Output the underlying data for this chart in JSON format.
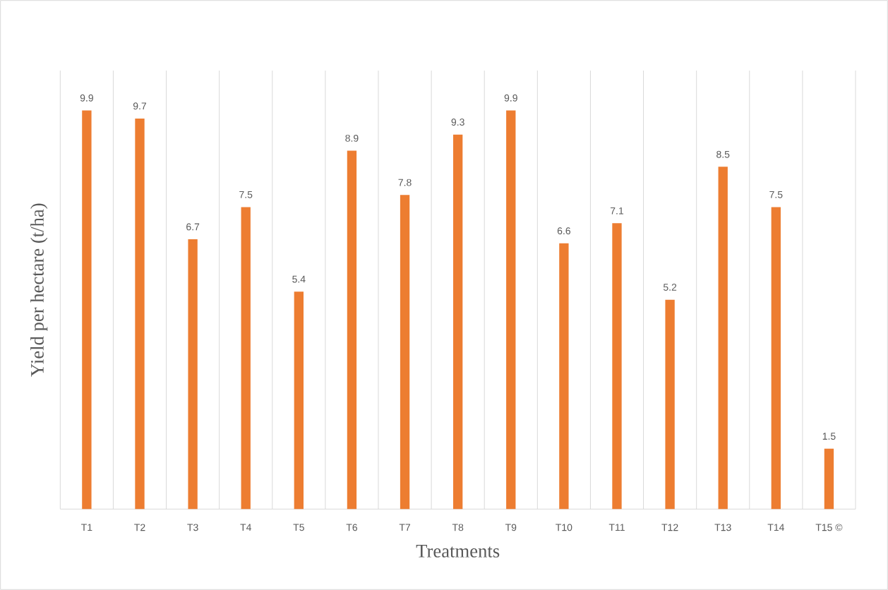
{
  "chart_data": {
    "type": "bar",
    "xlabel": "Treatments",
    "ylabel": "Yield  per hectare  (t/ha)",
    "categories": [
      "T1",
      "T2",
      "T3",
      "T4",
      "T5",
      "T6",
      "T7",
      "T8",
      "T9",
      "T10",
      "T11",
      "T12",
      "T13",
      "T14",
      "T15 ©"
    ],
    "values": [
      9.9,
      9.7,
      6.7,
      7.5,
      5.4,
      8.9,
      7.8,
      9.3,
      9.9,
      6.6,
      7.1,
      5.2,
      8.5,
      7.5,
      1.5
    ],
    "color": "#ed7d31",
    "data_labels": true,
    "grid": "x"
  }
}
